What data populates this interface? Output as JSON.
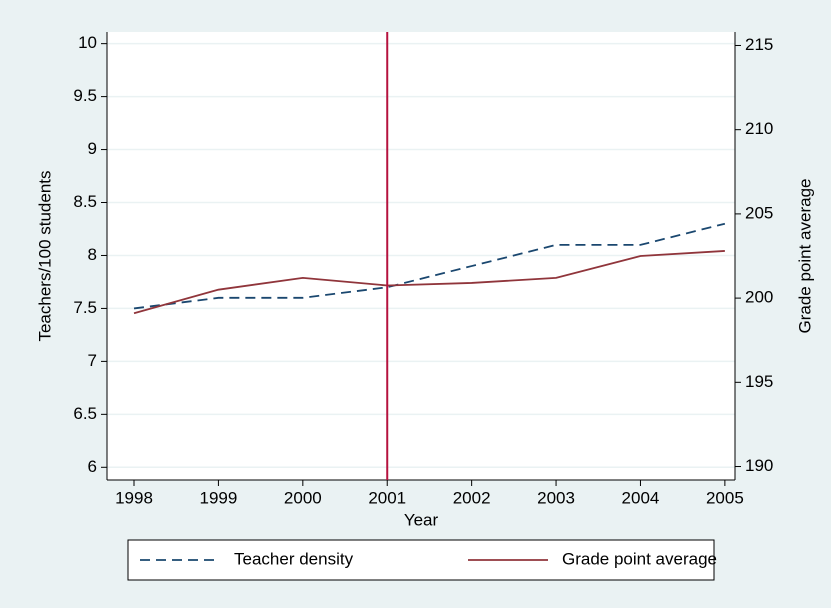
{
  "chart_data": {
    "type": "line",
    "x": [
      1998,
      1999,
      2000,
      2001,
      2002,
      2003,
      2004,
      2005
    ],
    "xlim": [
      1997.68,
      2005.12
    ],
    "xticks": [
      1998,
      1999,
      2000,
      2001,
      2002,
      2003,
      2004,
      2005
    ],
    "xlabel": "Year",
    "ylabel": "Teachers/100 students",
    "y2label": "Grade point average",
    "ylim": [
      5.88,
      10.11
    ],
    "yticks": [
      6,
      6.5,
      7,
      7.5,
      8,
      8.5,
      9,
      9.5,
      10
    ],
    "y2lim": [
      189.2,
      215.8
    ],
    "y2ticks": [
      190,
      195,
      200,
      205,
      210,
      215
    ],
    "grid": true,
    "vline": {
      "x": 2001,
      "color": "#b5123e"
    },
    "legend": "bottom",
    "series": [
      {
        "name": "Teacher density",
        "color": "#1a476f",
        "dash": true,
        "values": [
          7.5,
          7.6,
          7.6,
          7.7,
          7.9,
          8.1,
          8.1,
          8.3
        ]
      },
      {
        "name": "Grade point average",
        "color": "#90353b",
        "dash": false,
        "axis": "y2",
        "values": [
          199.1,
          200.5,
          201.2,
          200.75,
          200.9,
          201.2,
          202.5,
          202.8
        ]
      }
    ]
  }
}
